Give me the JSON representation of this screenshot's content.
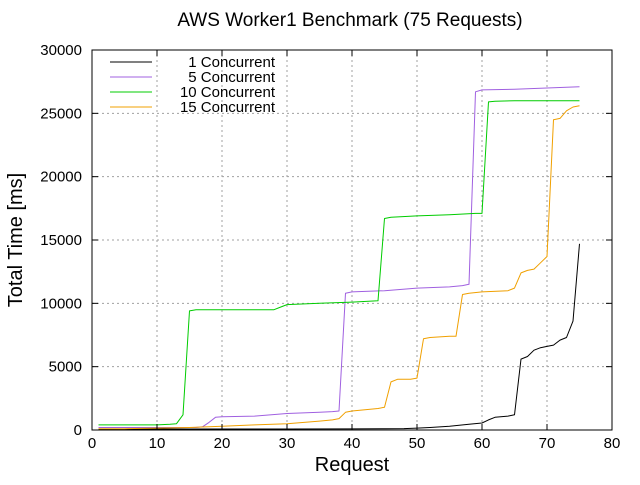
{
  "chart_data": {
    "type": "line",
    "title": "AWS Worker1 Benchmark (75 Requests)",
    "xlabel": "Request",
    "ylabel": "Total Time [ms]",
    "xlim": [
      0,
      80
    ],
    "ylim": [
      0,
      30000
    ],
    "xticks": [
      0,
      10,
      20,
      30,
      40,
      50,
      60,
      70,
      80
    ],
    "yticks": [
      0,
      5000,
      10000,
      15000,
      20000,
      25000,
      30000
    ],
    "grid": true,
    "legend_position": "top-left",
    "series": [
      {
        "name": "1 Concurrent",
        "color": "#000000",
        "points": [
          [
            1,
            80
          ],
          [
            5,
            80
          ],
          [
            10,
            80
          ],
          [
            20,
            80
          ],
          [
            30,
            80
          ],
          [
            40,
            90
          ],
          [
            45,
            100
          ],
          [
            48,
            110
          ],
          [
            50,
            150
          ],
          [
            52,
            200
          ],
          [
            55,
            300
          ],
          [
            58,
            450
          ],
          [
            60,
            550
          ],
          [
            61,
            800
          ],
          [
            62,
            1000
          ],
          [
            64,
            1100
          ],
          [
            65,
            1200
          ],
          [
            66,
            5600
          ],
          [
            67,
            5800
          ],
          [
            68,
            6300
          ],
          [
            69,
            6500
          ],
          [
            70,
            6600
          ],
          [
            71,
            6700
          ],
          [
            72,
            7100
          ],
          [
            73,
            7300
          ],
          [
            74,
            8600
          ],
          [
            75,
            14700
          ]
        ]
      },
      {
        "name": "5 Concurrent",
        "color": "#a060e0",
        "points": [
          [
            1,
            200
          ],
          [
            5,
            200
          ],
          [
            10,
            200
          ],
          [
            14,
            200
          ],
          [
            16,
            200
          ],
          [
            17,
            250
          ],
          [
            18,
            600
          ],
          [
            19,
            1000
          ],
          [
            20,
            1050
          ],
          [
            25,
            1100
          ],
          [
            30,
            1300
          ],
          [
            35,
            1400
          ],
          [
            37,
            1450
          ],
          [
            38,
            1500
          ],
          [
            39,
            10800
          ],
          [
            40,
            10900
          ],
          [
            45,
            11000
          ],
          [
            50,
            11200
          ],
          [
            55,
            11300
          ],
          [
            57,
            11400
          ],
          [
            58,
            11500
          ],
          [
            59,
            26700
          ],
          [
            60,
            26850
          ],
          [
            65,
            26900
          ],
          [
            70,
            27000
          ],
          [
            75,
            27100
          ]
        ]
      },
      {
        "name": "10 Concurrent",
        "color": "#00cc00",
        "points": [
          [
            1,
            400
          ],
          [
            5,
            400
          ],
          [
            10,
            400
          ],
          [
            12,
            450
          ],
          [
            13,
            500
          ],
          [
            14,
            1200
          ],
          [
            15,
            9400
          ],
          [
            16,
            9500
          ],
          [
            20,
            9500
          ],
          [
            25,
            9500
          ],
          [
            28,
            9500
          ],
          [
            29,
            9700
          ],
          [
            30,
            9900
          ],
          [
            35,
            10000
          ],
          [
            40,
            10100
          ],
          [
            44,
            10200
          ],
          [
            45,
            16700
          ],
          [
            46,
            16800
          ],
          [
            50,
            16900
          ],
          [
            55,
            17000
          ],
          [
            59,
            17100
          ],
          [
            60,
            17100
          ],
          [
            61,
            25900
          ],
          [
            62,
            25950
          ],
          [
            65,
            26000
          ],
          [
            70,
            26000
          ],
          [
            75,
            26000
          ]
        ]
      },
      {
        "name": "15 Concurrent",
        "color": "#f0a000",
        "points": [
          [
            1,
            100
          ],
          [
            5,
            100
          ],
          [
            10,
            150
          ],
          [
            15,
            200
          ],
          [
            20,
            300
          ],
          [
            25,
            400
          ],
          [
            30,
            500
          ],
          [
            35,
            700
          ],
          [
            37,
            800
          ],
          [
            38,
            900
          ],
          [
            39,
            1400
          ],
          [
            40,
            1500
          ],
          [
            42,
            1600
          ],
          [
            44,
            1700
          ],
          [
            45,
            1800
          ],
          [
            46,
            3800
          ],
          [
            47,
            4000
          ],
          [
            49,
            4000
          ],
          [
            50,
            4100
          ],
          [
            51,
            7200
          ],
          [
            52,
            7300
          ],
          [
            55,
            7400
          ],
          [
            56,
            7400
          ],
          [
            57,
            10700
          ],
          [
            58,
            10800
          ],
          [
            60,
            10900
          ],
          [
            64,
            11000
          ],
          [
            65,
            11200
          ],
          [
            66,
            12400
          ],
          [
            67,
            12600
          ],
          [
            68,
            12700
          ],
          [
            69,
            13200
          ],
          [
            70,
            13700
          ],
          [
            71,
            24500
          ],
          [
            72,
            24600
          ],
          [
            73,
            25200
          ],
          [
            74,
            25500
          ],
          [
            75,
            25600
          ]
        ]
      }
    ]
  }
}
